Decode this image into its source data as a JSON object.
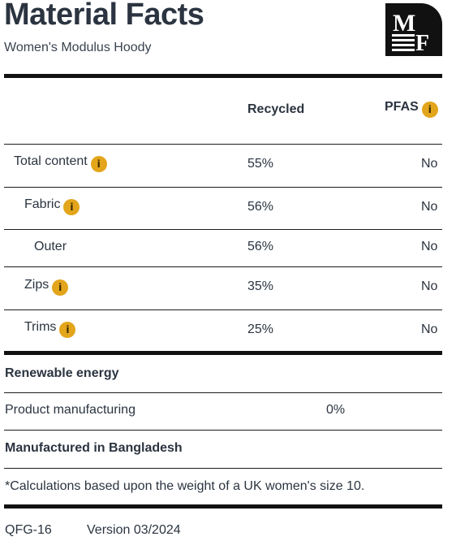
{
  "header": {
    "title": "Material Facts",
    "subtitle": "Women's Modulus Hoody",
    "logo_text": "MF"
  },
  "table": {
    "columns": {
      "recycled": "Recycled",
      "pfas": "PFAS"
    },
    "rows": [
      {
        "label": "Total content",
        "recycled": "55%",
        "pfas": "No",
        "info": true
      },
      {
        "label": "Fabric",
        "recycled": "56%",
        "pfas": "No",
        "info": true
      },
      {
        "label": "Outer",
        "recycled": "56%",
        "pfas": "No",
        "info": false
      },
      {
        "label": "Zips",
        "recycled": "35%",
        "pfas": "No",
        "info": true
      },
      {
        "label": "Trims",
        "recycled": "25%",
        "pfas": "No",
        "info": true
      }
    ]
  },
  "renewable": {
    "heading": "Renewable energy",
    "label": "Product manufacturing",
    "value": "0%"
  },
  "manufactured": "Manufactured in Bangladesh",
  "footnote": "*Calculations based upon the weight of a UK women's size 10.",
  "footer": {
    "code": "QFG-16",
    "version": "Version 03/2024"
  },
  "colors": {
    "info_badge": "#e3a51b",
    "text": "#2b3440",
    "rule": "#111111"
  },
  "icons": {
    "info": "info-icon",
    "logo": "mf-logo"
  }
}
